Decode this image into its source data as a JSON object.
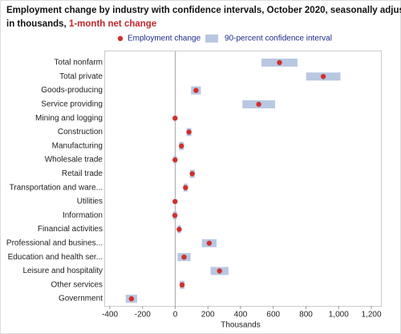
{
  "chart_data": {
    "type": "interval",
    "title_lines": [
      "Employment change by industry with confidence intervals, October 2020, seasonally adjusted,",
      "in thousands,"
    ],
    "title_highlight": "1-month net change",
    "x_label": "Thousands",
    "categories": [
      "Total nonfarm",
      "Total private",
      "Goods-producing",
      "Service providing",
      "Mining and logging",
      "Construction",
      "Manufacturing",
      "Wholesale trade",
      "Retail trade",
      "Transportation and ware...",
      "Utilities",
      "Information",
      "Financial activities",
      "Professional and busines...",
      "Education and health ser...",
      "Leisure and hospitality",
      "Other services",
      "Government"
    ],
    "series": [
      {
        "name": "Employment change",
        "color": "#d0302c",
        "values": [
          638,
          906,
          127,
          511,
          -1,
          84,
          38,
          -1,
          104,
          63,
          -1,
          -2,
          24,
          208,
          54,
          271,
          42,
          -268
        ]
      },
      {
        "name": "90-percent confidence interval",
        "color": "#b8c8e2",
        "values": [
          110,
          105,
          30,
          100,
          5,
          15,
          15,
          10,
          15,
          12,
          3,
          12,
          10,
          45,
          40,
          55,
          15,
          35
        ]
      }
    ],
    "xlim": [
      -400,
      1200
    ],
    "xticks": [
      -400,
      -200,
      0,
      200,
      400,
      600,
      800,
      {
        "value": 1000,
        "label": "1,000"
      },
      {
        "value": 1200,
        "label": "1,200"
      }
    ]
  }
}
